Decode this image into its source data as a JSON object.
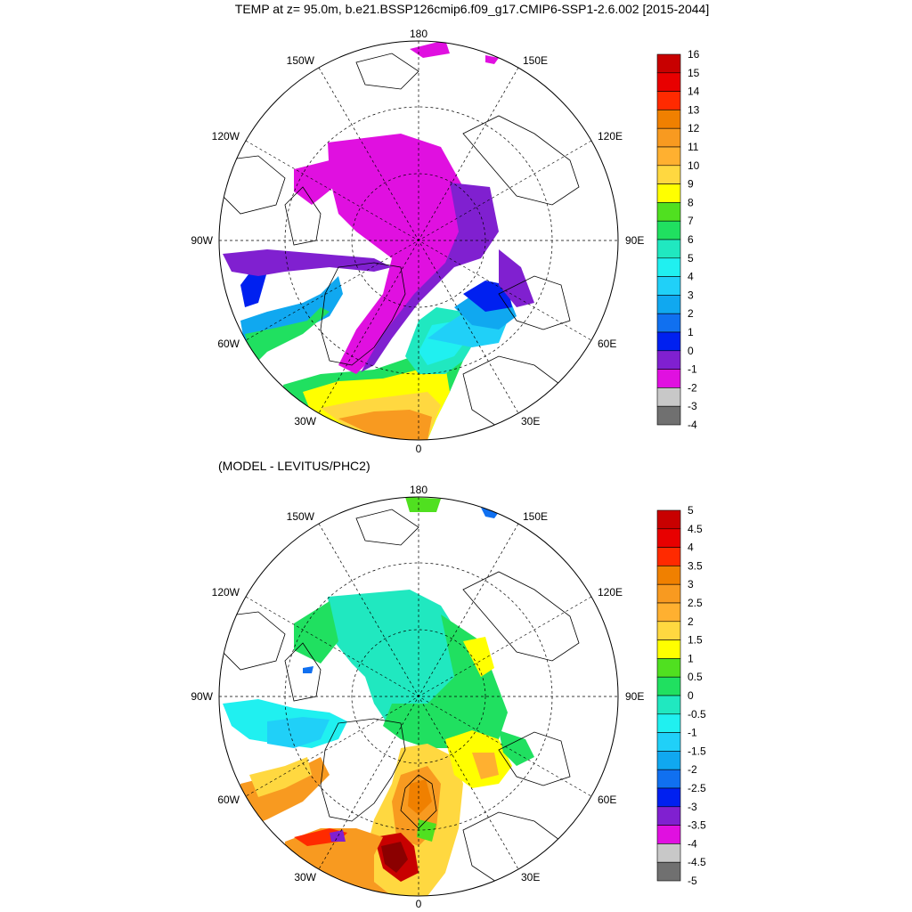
{
  "title": "TEMP at z=  95.0m, b.e21.BSSP126cmip6.f09_g17.CMIP6-SSP1-2.6.002 [2015-2044]",
  "subtitle": "(MODEL - LEVITUS/PHC2)",
  "panels": [
    {
      "id": "top",
      "lon_labels": {
        "180": "180",
        "150W": "150W",
        "150E": "150E",
        "120W": "120W",
        "120E": "120E",
        "90W": "90W",
        "90E": "90E",
        "60W": "60W",
        "60E": "60E",
        "30W": "30W",
        "30E": "30E",
        "0": "0"
      },
      "colorbar": {
        "labels": [
          "16",
          "15",
          "14",
          "13",
          "12",
          "11",
          "10",
          "9",
          "8",
          "7",
          "6",
          "5",
          "4",
          "3",
          "2",
          "1",
          "0",
          "-1",
          "-2",
          "-3",
          "-4"
        ],
        "colors": [
          "#c80000",
          "#e80000",
          "#ff2a00",
          "#f08000",
          "#f89a20",
          "#ffb030",
          "#ffd840",
          "#ffff00",
          "#50e020",
          "#20e060",
          "#20e8c0",
          "#20f0f0",
          "#20d0f8",
          "#10a8f0",
          "#1070f0",
          "#0020f0",
          "#8020d0",
          "#e010e0",
          "#c8c8c8",
          "#707070"
        ]
      }
    },
    {
      "id": "bottom",
      "lon_labels": {
        "180": "180",
        "150W": "150W",
        "150E": "150E",
        "120W": "120W",
        "120E": "120E",
        "90W": "90W",
        "90E": "90E",
        "60W": "60W",
        "60E": "60E",
        "30W": "30W",
        "30E": "30E",
        "0": "0"
      },
      "colorbar": {
        "labels": [
          "5",
          "4.5",
          "4",
          "3.5",
          "3",
          "2.5",
          "2",
          "1.5",
          "1",
          "0.5",
          "0",
          "-0.5",
          "-1",
          "-1.5",
          "-2",
          "-2.5",
          "-3",
          "-3.5",
          "-4",
          "-4.5",
          "-5"
        ],
        "colors": [
          "#c80000",
          "#e80000",
          "#ff2a00",
          "#f08000",
          "#f89a20",
          "#ffb030",
          "#ffd840",
          "#ffff00",
          "#50e020",
          "#20e060",
          "#20e8c0",
          "#20f0f0",
          "#20d0f8",
          "#10a8f0",
          "#1070f0",
          "#0020f0",
          "#8020d0",
          "#e010e0",
          "#c8c8c8",
          "#707070"
        ]
      }
    }
  ]
}
